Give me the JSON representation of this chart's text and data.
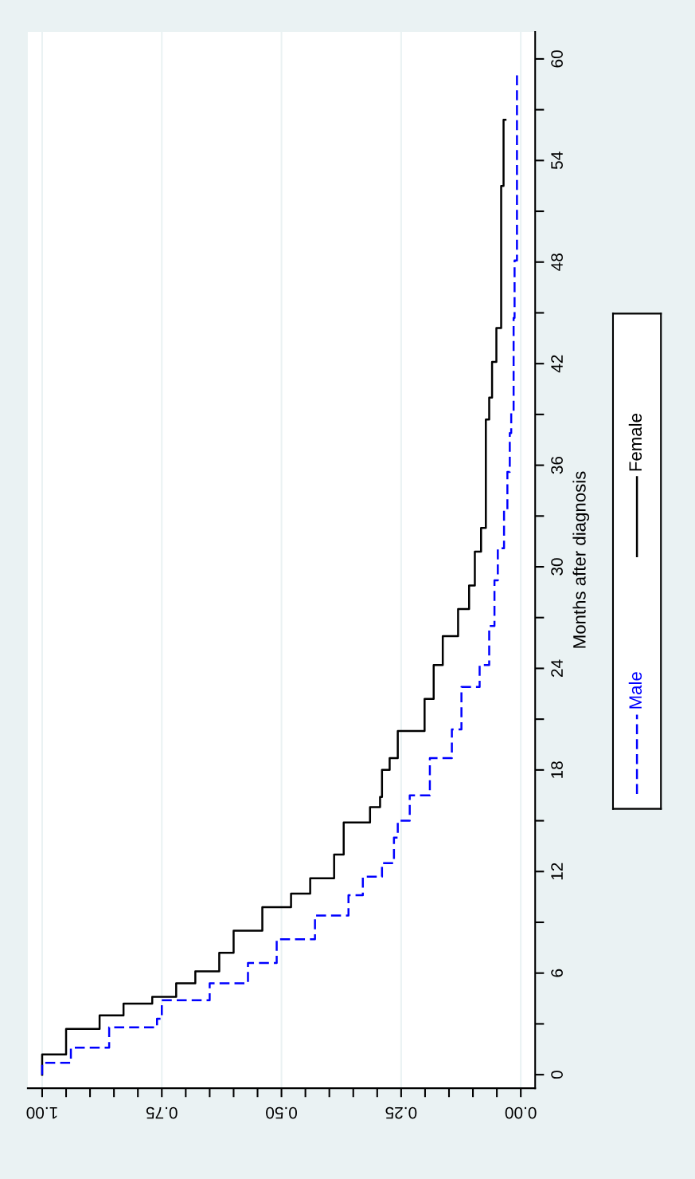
{
  "chart_data": {
    "type": "step",
    "ylabel": "Months after diagnosis",
    "ylim": [
      -0.8,
      61.6
    ],
    "yticks": [
      0,
      {
        "value": 3,
        "label": null
      },
      6,
      {
        "value": 9,
        "label": null
      },
      12,
      {
        "value": 15,
        "label": null
      },
      18,
      {
        "value": 21,
        "label": null
      },
      24,
      {
        "value": 27,
        "label": null
      },
      30,
      {
        "value": 33,
        "label": null
      },
      36,
      {
        "value": 39,
        "label": null
      },
      42,
      {
        "value": 45,
        "label": null
      },
      48,
      {
        "value": 51,
        "label": null
      },
      54,
      {
        "value": 57,
        "label": null
      },
      60
    ],
    "xlim": [
      1.03,
      -0.03
    ],
    "xticks": [
      {
        "value": 0,
        "label": "0.00"
      },
      {
        "value": 0.05,
        "label": null
      },
      {
        "value": 0.1,
        "label": null
      },
      {
        "value": 0.15,
        "label": null
      },
      {
        "value": 0.2,
        "label": null
      },
      {
        "value": 0.25,
        "label": "0.25"
      },
      {
        "value": 0.3,
        "label": null
      },
      {
        "value": 0.35,
        "label": null
      },
      {
        "value": 0.4,
        "label": null
      },
      {
        "value": 0.45,
        "label": null
      },
      {
        "value": 0.5,
        "label": "0.50"
      },
      {
        "value": 0.55,
        "label": null
      },
      {
        "value": 0.6,
        "label": null
      },
      {
        "value": 0.65,
        "label": null
      },
      {
        "value": 0.7,
        "label": null
      },
      {
        "value": 0.75,
        "label": "0.75"
      },
      {
        "value": 0.8,
        "label": null
      },
      {
        "value": 0.85,
        "label": null
      },
      {
        "value": 0.9,
        "label": null
      },
      {
        "value": 0.95,
        "label": null
      },
      {
        "value": 1,
        "label": "1.00"
      }
    ],
    "grid": "x",
    "legend": "right",
    "series": [
      {
        "name": "Male",
        "color": "#0000ff",
        "line_style": "dashed",
        "values": [
          0,
          0.7,
          1.6,
          2.8,
          3.3,
          4.4,
          5.4,
          6.6,
          8.0,
          9.4,
          10.6,
          11.7,
          12.5,
          14.0,
          15.0,
          16.5,
          18.7,
          20.4,
          22.9,
          24.2,
          26.5,
          29.2,
          31.1,
          33.4,
          35.6,
          37.9,
          39.2,
          44.7,
          48.1,
          59.3
        ],
        "x": [
          1.0,
          0.94,
          0.86,
          0.76,
          0.75,
          0.65,
          0.57,
          0.51,
          0.43,
          0.36,
          0.33,
          0.29,
          0.265,
          0.257,
          0.232,
          0.19,
          0.144,
          0.124,
          0.086,
          0.066,
          0.055,
          0.048,
          0.035,
          0.028,
          0.023,
          0.02,
          0.015,
          0.013,
          0.008,
          0.008
        ]
      },
      {
        "name": "Female",
        "color": "#000000",
        "line_style": "solid",
        "values": [
          0,
          1.2,
          2.7,
          3.5,
          4.2,
          4.6,
          5.4,
          6.1,
          7.2,
          8.5,
          9.9,
          10.7,
          11.6,
          13.0,
          14.9,
          15.8,
          16.4,
          18.0,
          18.7,
          20.3,
          22.2,
          24.2,
          25.9,
          27.5,
          28.9,
          30.9,
          32.3,
          38.7,
          40.0,
          42.1,
          44.1,
          52.5,
          56.4
        ],
        "x": [
          1.0,
          0.95,
          0.88,
          0.83,
          0.77,
          0.72,
          0.68,
          0.63,
          0.6,
          0.54,
          0.48,
          0.44,
          0.39,
          0.37,
          0.315,
          0.294,
          0.29,
          0.274,
          0.257,
          0.201,
          0.182,
          0.163,
          0.131,
          0.108,
          0.096,
          0.083,
          0.073,
          0.066,
          0.06,
          0.051,
          0.041,
          0.036,
          0.032
        ]
      }
    ]
  }
}
